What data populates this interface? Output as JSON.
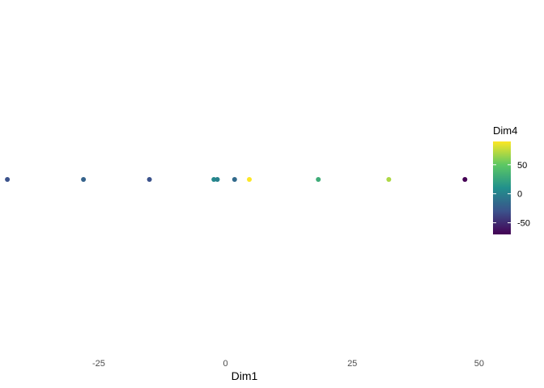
{
  "chart_data": {
    "type": "scatter",
    "title": "",
    "xlabel": "Dim1",
    "ylabel": "",
    "grid": false,
    "xlim": [
      -43.5,
      50.5
    ],
    "x_ticks": [
      -25,
      0,
      25,
      50
    ],
    "x_tick_labels": [
      "-25",
      "0",
      "25",
      "50"
    ],
    "points": [
      {
        "x": -43.0,
        "y": 0,
        "color_value": -30
      },
      {
        "x": -28.0,
        "y": 0,
        "color_value": -20
      },
      {
        "x": -15.0,
        "y": 0,
        "color_value": -30
      },
      {
        "x": -2.3,
        "y": 0,
        "color_value": 5
      },
      {
        "x": -1.6,
        "y": 0,
        "color_value": 0
      },
      {
        "x": 1.8,
        "y": 0,
        "color_value": -15
      },
      {
        "x": 4.7,
        "y": 0,
        "color_value": 90
      },
      {
        "x": 18.3,
        "y": 0,
        "color_value": 30
      },
      {
        "x": 32.2,
        "y": 0,
        "color_value": 70
      },
      {
        "x": 47.2,
        "y": 0,
        "color_value": -70
      }
    ],
    "colorbar": {
      "title": "Dim4",
      "range": [
        -70,
        90
      ],
      "ticks": [
        50,
        0,
        -50
      ],
      "tick_labels": [
        "50",
        "0",
        "-50"
      ],
      "palette": [
        "#440154",
        "#3b528b",
        "#21908c",
        "#5dc863",
        "#fde725"
      ],
      "placement": "right"
    }
  }
}
